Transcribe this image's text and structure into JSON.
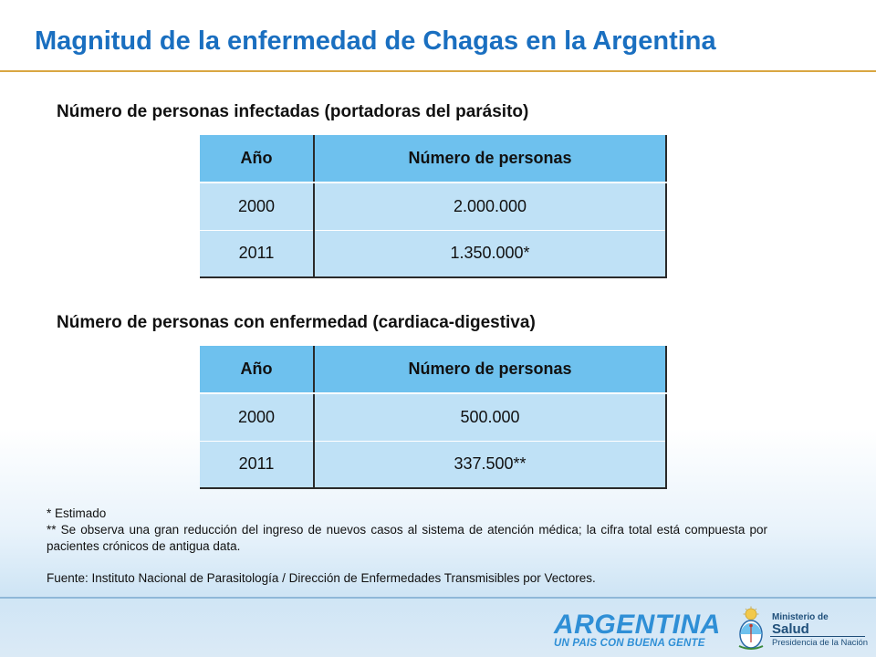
{
  "title": "Magnitud de la enfermedad de Chagas en la Argentina",
  "section1": {
    "heading": "Número de personas infectadas (portadoras del parásito)",
    "table": {
      "headers": [
        "Año",
        "Número de personas"
      ],
      "rows": [
        [
          "2000",
          "2.000.000"
        ],
        [
          "2011",
          "1.350.000*"
        ]
      ]
    }
  },
  "section2": {
    "heading": "Número de personas con enfermedad (cardiaca-digestiva)",
    "table": {
      "headers": [
        "Año",
        "Número de personas"
      ],
      "rows": [
        [
          "2000",
          "500.000"
        ],
        [
          "2011",
          "337.500**"
        ]
      ]
    }
  },
  "notes": {
    "note1": "* Estimado",
    "note2": "** Se observa una gran reducción del ingreso de nuevos casos al sistema de atención médica; la cifra total está compuesta por pacientes crónicos de antigua data.",
    "source": "Fuente: Instituto Nacional de Parasitología / Dirección de Enfermedades Transmisibles por Vectores."
  },
  "footer": {
    "logo_word": "ARGENTINA",
    "logo_tagline": "UN PAIS CON BUENA GENTE",
    "ministry_line1": "Ministerio de",
    "ministry_line2": "Salud",
    "ministry_line3": "Presidencia de la Nación",
    "emblem_icon": "argentina-coat-of-arms-icon"
  },
  "colors": {
    "title": "#1a6fc0",
    "header_cell": "#6ec1ee",
    "body_cell": "#bfe1f6",
    "accent_rule": "#d9a642"
  }
}
